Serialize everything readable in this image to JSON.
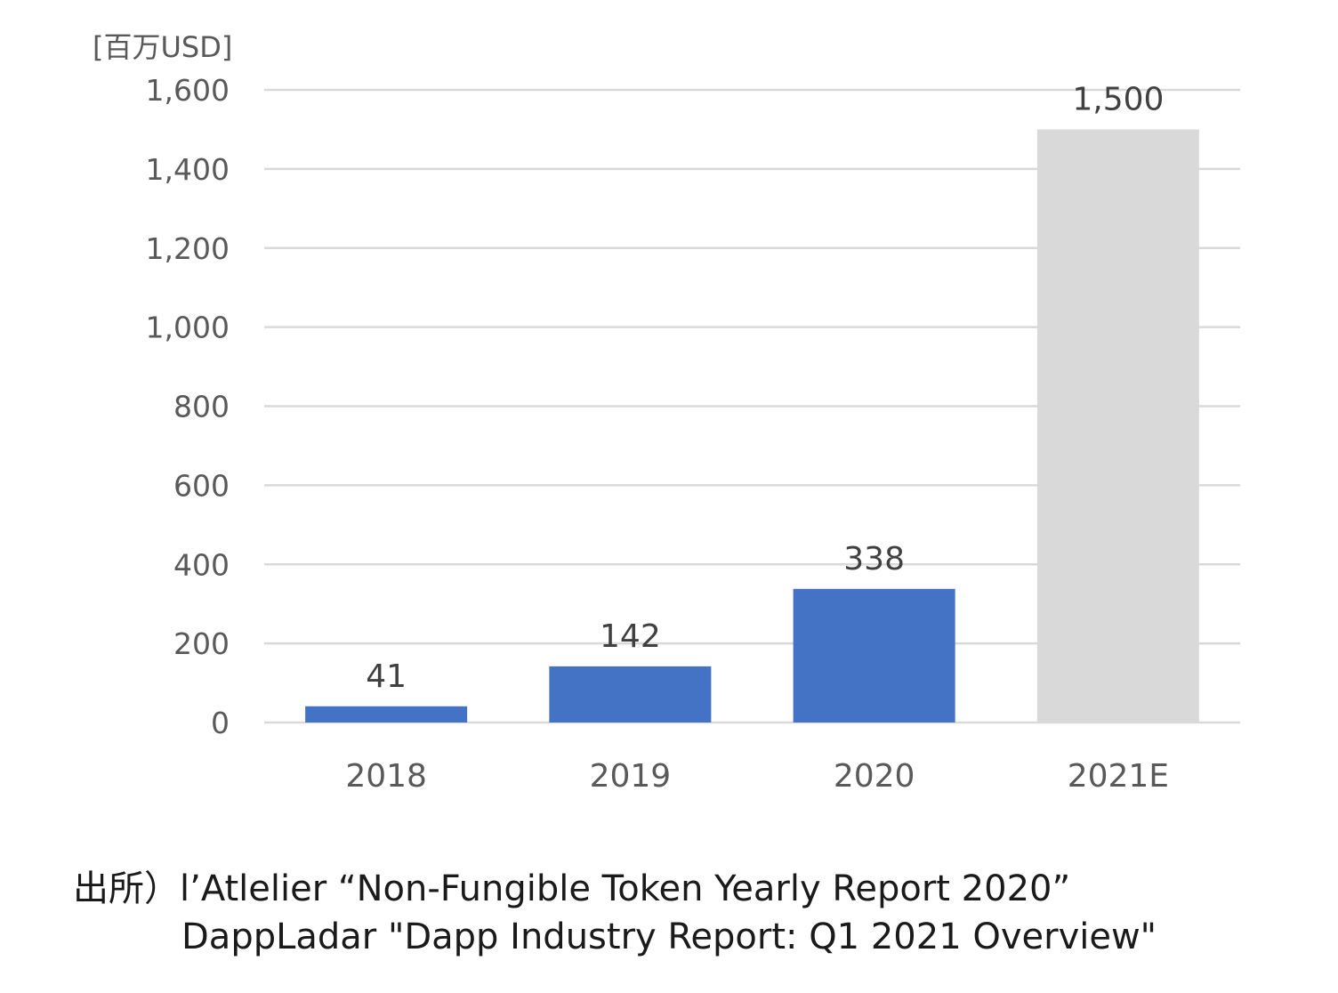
{
  "chart_data": {
    "type": "bar",
    "unit_label": "[百万USD]",
    "categories": [
      "2018",
      "2019",
      "2020",
      "2021E"
    ],
    "values": [
      41,
      142,
      338,
      1500
    ],
    "value_labels": [
      "41",
      "142",
      "338",
      "1,500"
    ],
    "bar_colors": [
      "#4472c4",
      "#4472c4",
      "#4472c4",
      "#d9d9d9"
    ],
    "ylim": [
      0,
      1600
    ],
    "yticks": [
      0,
      200,
      400,
      600,
      800,
      1000,
      1200,
      1400,
      1600
    ],
    "ytick_labels": [
      "0",
      "200",
      "400",
      "600",
      "800",
      "1,000",
      "1,200",
      "1,400",
      "1,600"
    ],
    "grid": true,
    "legend": "none",
    "gridline_color": "#d9d9d9",
    "tick_label_color": "#595959",
    "data_label_color": "#404040"
  },
  "source": {
    "line1": "出所）l’Atlelier “Non-Fungible Token Yearly Report 2020”",
    "line2": "DappLadar \"Dapp Industry Report: Q1 2021 Overview\""
  }
}
